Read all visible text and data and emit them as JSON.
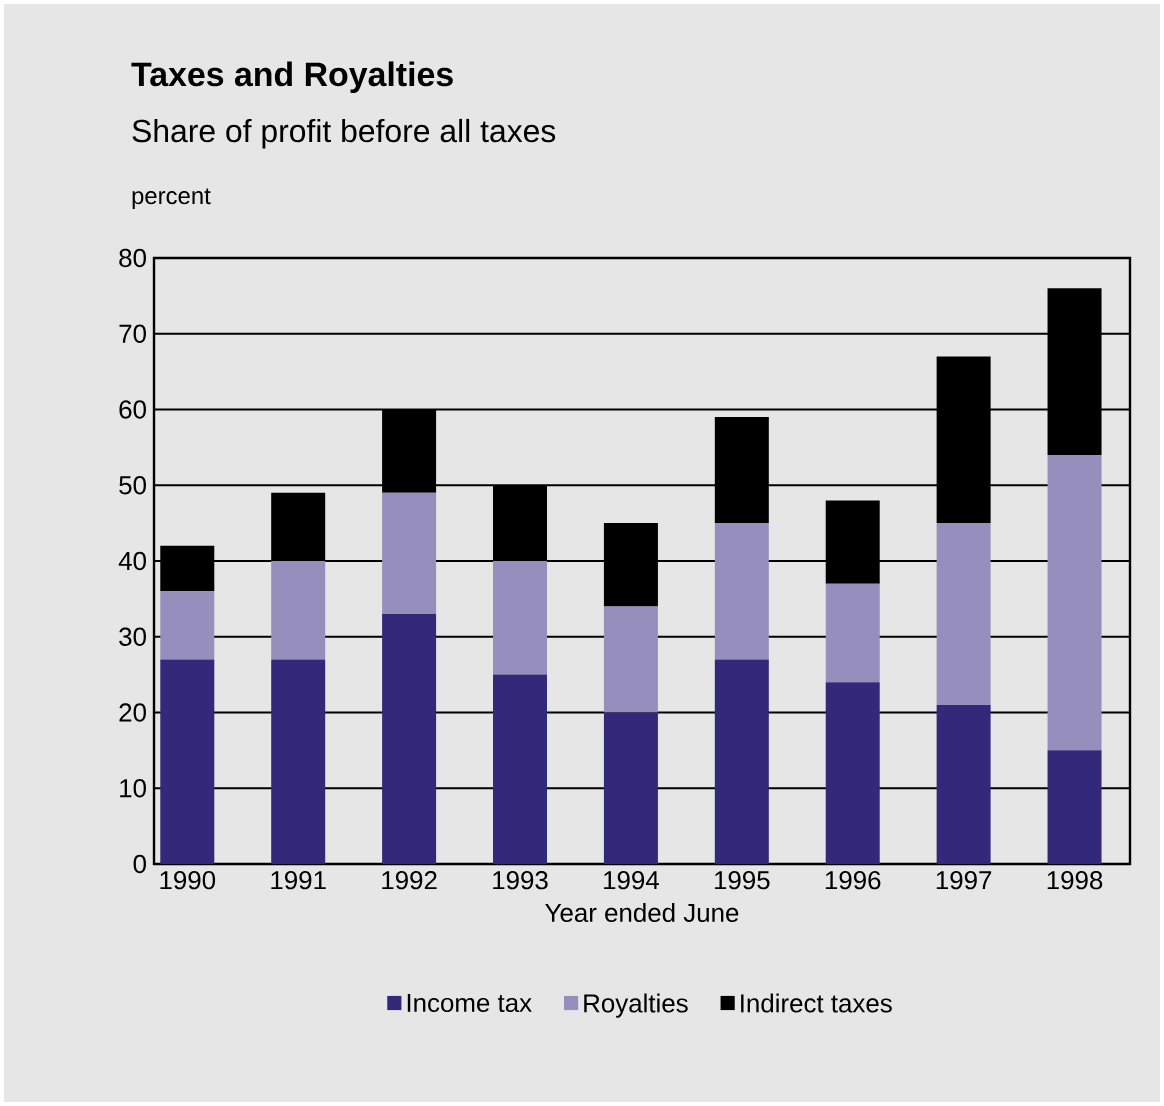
{
  "chart_data": {
    "type": "bar",
    "title": "Taxes and Royalties",
    "subtitle": "Share of profit before all taxes",
    "ylabel": "percent",
    "xlabel": "Year ended June",
    "categories": [
      "1990",
      "1991",
      "1992",
      "1993",
      "1994",
      "1995",
      "1996",
      "1997",
      "1998"
    ],
    "stacked": true,
    "series": [
      {
        "name": "Income tax",
        "color": "#32297a",
        "values": [
          27,
          27,
          33,
          25,
          20,
          27,
          24,
          21,
          15
        ]
      },
      {
        "name": "Royalties",
        "color": "#968fbd",
        "values": [
          9,
          13,
          16,
          15,
          14,
          18,
          13,
          24,
          39
        ]
      },
      {
        "name": "Indirect taxes",
        "color": "#000000",
        "values": [
          6,
          9,
          11,
          10,
          11,
          14,
          11,
          22,
          22
        ]
      }
    ],
    "ylim": [
      0,
      80
    ],
    "yticks": [
      0,
      10,
      20,
      30,
      40,
      50,
      60,
      70,
      80
    ],
    "grid": "y",
    "legend": "bottom"
  }
}
